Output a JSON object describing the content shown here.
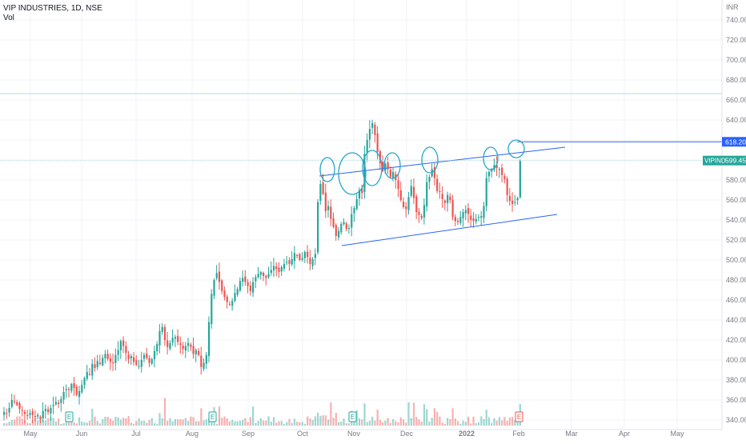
{
  "header": {
    "title": "VIP INDUSTRIES, 1D, NSE",
    "sub": "Vol"
  },
  "colors": {
    "up": "#26a69a",
    "down": "#ef5350",
    "line": "#2962ff",
    "hline": "#4a90c8",
    "circle": "#26a6c8",
    "grid": "#f0f3fa",
    "axis": "#787b86"
  },
  "price_axis": {
    "currency": "INR",
    "ticks": [
      340,
      360,
      380,
      400,
      420,
      440,
      460,
      480,
      500,
      520,
      540,
      560,
      580,
      600,
      620,
      640,
      660,
      680,
      700,
      720,
      740
    ]
  },
  "time_axis": {
    "labels": [
      "May",
      "Jun",
      "Jul",
      "Aug",
      "Sep",
      "Oct",
      "Nov",
      "Dec",
      "2022",
      "Feb",
      "Mar",
      "Apr",
      "May"
    ]
  },
  "price_labels": {
    "hline_value": "618.20",
    "last_name": "VIPIND",
    "last_value": "599.45"
  },
  "event_markers": [
    "E",
    "E",
    "E",
    "E"
  ],
  "chart_data": {
    "type": "candlestick",
    "title": "VIP INDUSTRIES, 1D, NSE",
    "ylim": [
      333,
      762
    ],
    "series": [
      {
        "name": "VIPIND",
        "close": [
          348,
          346,
          352,
          360,
          358,
          355,
          351,
          349,
          346,
          344,
          347,
          345,
          343,
          345,
          341,
          349,
          351,
          348,
          352,
          355,
          358,
          356,
          361,
          368,
          371,
          370,
          376,
          372,
          365,
          369,
          375,
          382,
          388,
          386,
          396,
          392,
          399,
          396,
          402,
          406,
          401,
          398,
          397,
          405,
          410,
          419,
          414,
          407,
          401,
          404,
          398,
          395,
          394,
          400,
          405,
          402,
          397,
          401,
          409,
          416,
          429,
          433,
          420,
          413,
          417,
          422,
          423,
          418,
          415,
          411,
          414,
          417,
          413,
          406,
          410,
          405,
          393,
          397,
          405,
          438,
          466,
          480,
          487,
          478,
          469,
          463,
          458,
          456,
          459,
          467,
          471,
          479,
          482,
          478,
          474,
          469,
          478,
          483,
          486,
          488,
          484,
          482,
          486,
          490,
          494,
          491,
          488,
          493,
          496,
          498,
          496,
          501,
          507,
          504,
          500,
          502,
          508,
          503,
          496,
          501,
          506,
          558,
          576,
          566,
          549,
          554,
          541,
          533,
          524,
          529,
          536,
          538,
          531,
          532,
          546,
          552,
          561,
          570,
          567,
          606,
          620,
          631,
          637,
          625,
          608,
          597,
          589,
          596,
          591,
          583,
          588,
          580,
          571,
          560,
          553,
          551,
          563,
          574,
          562,
          548,
          545,
          542,
          555,
          578,
          583,
          591,
          582,
          569,
          568,
          561,
          557,
          565,
          560,
          543,
          539,
          538,
          543,
          548,
          550,
          546,
          540,
          539,
          541,
          543,
          544,
          554,
          582,
          588,
          591,
          595,
          592,
          591,
          585,
          581,
          565,
          559,
          556,
          558,
          562,
          599
        ]
      }
    ],
    "horizontal_line": 618.2,
    "last_price": 599.45,
    "event_markers": [
      "E",
      "E",
      "E",
      "E"
    ]
  }
}
